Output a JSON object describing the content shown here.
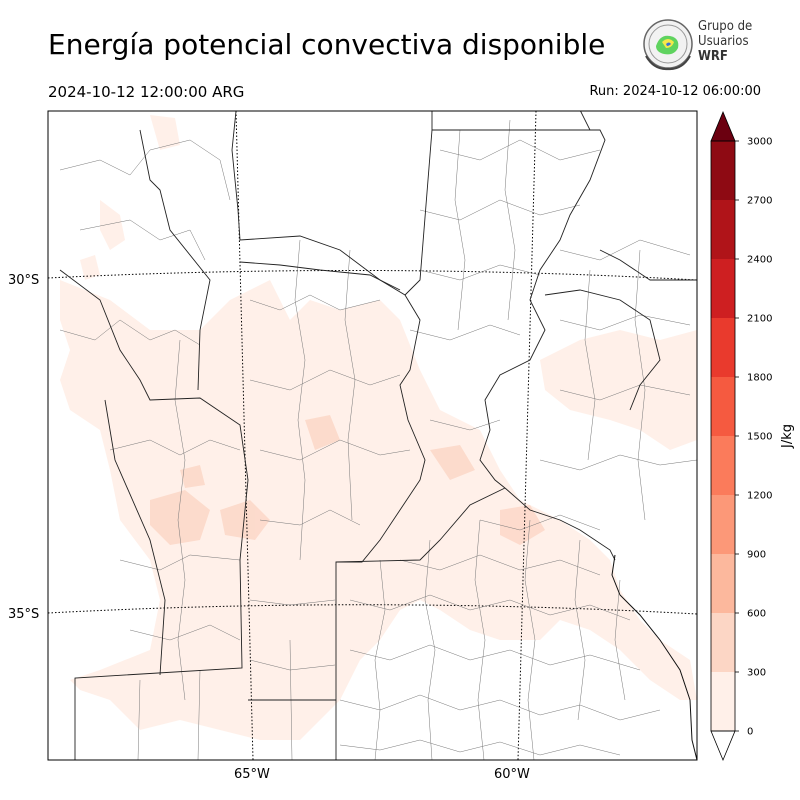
{
  "header": {
    "title": "Energía potencial convectiva disponible",
    "valid_time": "2024-10-12 12:00:00 ARG",
    "run_time": "Run: 2024-10-12 06:00:00"
  },
  "logo": {
    "line1": "Grupo de",
    "line2": "Usuarios",
    "line3": "WRF"
  },
  "map": {
    "lat_labels": [
      "30°S",
      "35°S"
    ],
    "lon_labels": [
      "65°W",
      "60°W"
    ]
  },
  "colorbar": {
    "unit": "J/kg",
    "ticks": [
      "0",
      "300",
      "600",
      "900",
      "1200",
      "1500",
      "1800",
      "2100",
      "2400",
      "2700",
      "3000"
    ],
    "colors": [
      "#fff0e9",
      "#fcd6c5",
      "#fcb89d",
      "#fc9878",
      "#fb7b5b",
      "#f55a40",
      "#e93a2d",
      "#ce1f21",
      "#b01419",
      "#8e0a13"
    ],
    "under_color": "#ffffff",
    "over_color": "#6b0010"
  }
}
